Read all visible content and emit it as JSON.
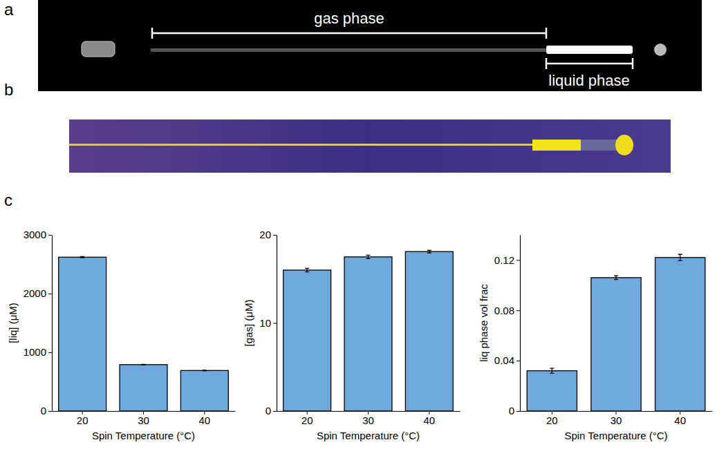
{
  "figure": {
    "panel_labels": [
      "a",
      "b",
      "c"
    ],
    "photo_annotations": [
      "gas phase",
      "liquid phase"
    ]
  },
  "chart_data": [
    {
      "type": "bar",
      "categories": [
        "20",
        "30",
        "40"
      ],
      "values": [
        2620,
        790,
        690
      ],
      "errors": [
        10,
        6,
        5
      ],
      "x_label": "Spin Temperature (°C)",
      "y_label": "[liq] (μM)",
      "color": "#6fa8dc",
      "ylim": [
        0,
        3000
      ],
      "yticks": [
        0,
        1000,
        2000,
        3000
      ],
      "grid": false
    },
    {
      "type": "bar",
      "categories": [
        "20",
        "30",
        "40"
      ],
      "values": [
        16.0,
        17.5,
        18.1
      ],
      "errors": [
        0.2,
        0.2,
        0.15
      ],
      "x_label": "Spin Temperature (°C)",
      "y_label": "[gas] (μM)",
      "color": "#6fa8dc",
      "ylim": [
        0,
        20
      ],
      "yticks": [
        0,
        10,
        20
      ],
      "grid": false
    },
    {
      "type": "bar",
      "categories": [
        "20",
        "30",
        "40"
      ],
      "values": [
        0.032,
        0.106,
        0.122
      ],
      "errors": [
        0.002,
        0.0015,
        0.0025
      ],
      "x_label": "Spin Temperature (°C)",
      "y_label": "liq phase vol frac",
      "color": "#6fa8dc",
      "ylim": [
        0,
        0.14
      ],
      "yticks": [
        0,
        0.04,
        0.08,
        0.12
      ],
      "grid": false
    }
  ]
}
